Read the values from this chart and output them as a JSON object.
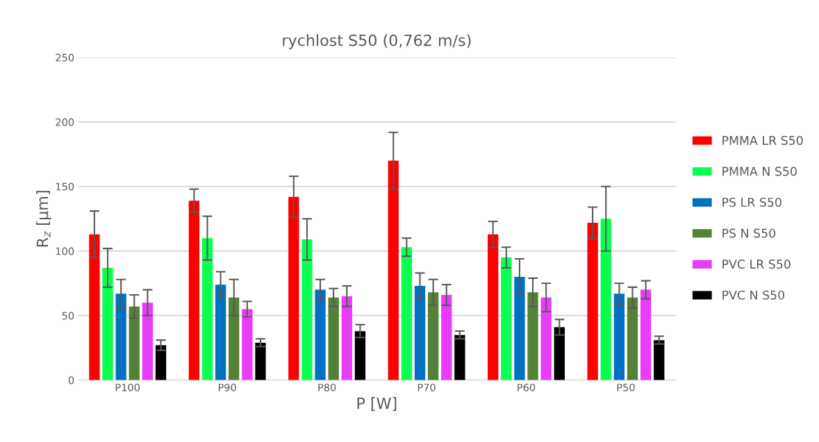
{
  "chart_data": {
    "type": "bar",
    "title": "rychlost S50 (0,762 m/s)",
    "xlabel": "P [W]",
    "ylabel": "R$_{z}$ [µm]",
    "categories": [
      "P100",
      "P90",
      "P80",
      "P70",
      "P60",
      "P50"
    ],
    "series": [
      {
        "name": "PMMA LR S50",
        "color": "#ff0000",
        "values": [
          113,
          139,
          142,
          170,
          113,
          122
        ],
        "errors": [
          18,
          9,
          16,
          22,
          10,
          12
        ]
      },
      {
        "name": "PMMA N S50",
        "color": "#0aff50",
        "values": [
          87,
          110,
          109,
          103,
          95,
          125
        ],
        "errors": [
          15,
          17,
          16,
          7,
          8,
          25
        ]
      },
      {
        "name": "PS LR S50",
        "color": "#0070c0",
        "values": [
          67,
          74,
          70,
          73,
          80,
          67
        ],
        "errors": [
          11,
          10,
          8,
          10,
          14,
          8
        ]
      },
      {
        "name": "PS N S50",
        "color": "#538135",
        "values": [
          57,
          64,
          64,
          68,
          68,
          64
        ],
        "errors": [
          9,
          14,
          7,
          10,
          11,
          8
        ]
      },
      {
        "name": "PVC LR S50",
        "color": "#e93cfa",
        "values": [
          60,
          55,
          65,
          66,
          64,
          70
        ],
        "errors": [
          10,
          6,
          8,
          8,
          11,
          7
        ]
      },
      {
        "name": "PVC N S50",
        "color": "#000000",
        "values": [
          27,
          29,
          38,
          35,
          41,
          31
        ],
        "errors": [
          4,
          3,
          5,
          3,
          6,
          3
        ]
      }
    ],
    "ylim": [
      0,
      250
    ],
    "yticks": [
      0,
      50,
      100,
      150,
      200,
      250
    ],
    "grid": "y",
    "legend": "right"
  }
}
